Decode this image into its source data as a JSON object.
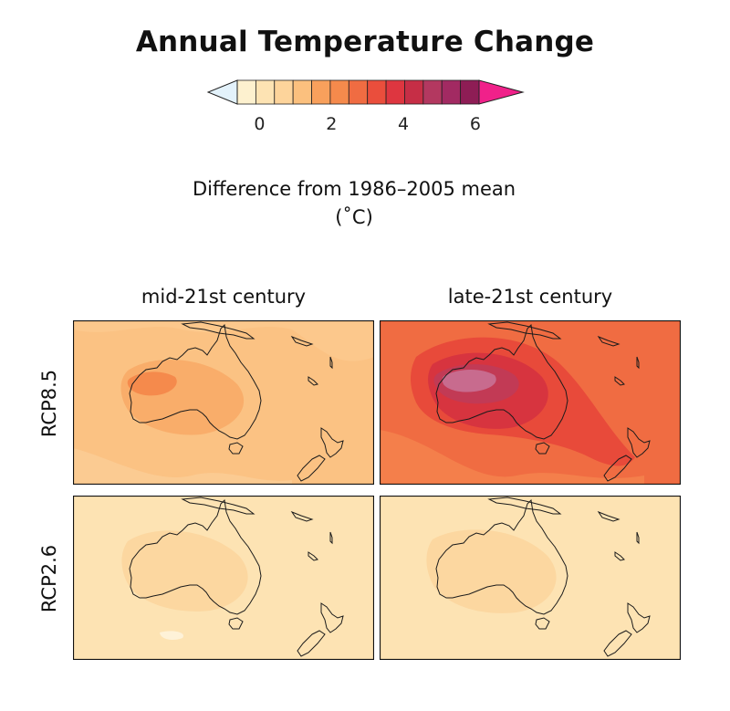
{
  "title": "Annual Temperature Change",
  "subtitle_line1": "Difference from 1986–2005 mean",
  "subtitle_line2": "(˚C)",
  "colorbar": {
    "ticks": [
      "0",
      "2",
      "4",
      "6"
    ],
    "colors": [
      "#fdf1cf",
      "#fde3b3",
      "#fdd49b",
      "#fbc07e",
      "#f8a05c",
      "#f58a4c",
      "#f06c42",
      "#ea4e3c",
      "#de3640",
      "#c62e46",
      "#b33860",
      "#a22a62",
      "#8e1d55"
    ],
    "under_color": "#e3f2fb",
    "over_color": "#f0218a"
  },
  "columns": [
    "mid-21st century",
    "late-21st century"
  ],
  "rows": [
    "RCP8.5",
    "RCP2.6"
  ],
  "panels": {
    "mid85": {
      "scenario": "RCP8.5",
      "period": "mid-21st century",
      "background": "#fbc283",
      "inner": "#f9ad6a",
      "core": "#f58a4c"
    },
    "late85": {
      "scenario": "RCP8.5",
      "period": "late-21st century",
      "background": "#f06c42",
      "inner": "#e23c38",
      "core": "#c23a55",
      "peak": "#c86b8e"
    },
    "mid26": {
      "scenario": "RCP2.6",
      "period": "mid-21st century",
      "background": "#fde3b3",
      "inner": "#fcd7a0"
    },
    "late26": {
      "scenario": "RCP2.6",
      "period": "late-21st century",
      "background": "#fde3b3",
      "inner": "#fcd7a0"
    }
  }
}
